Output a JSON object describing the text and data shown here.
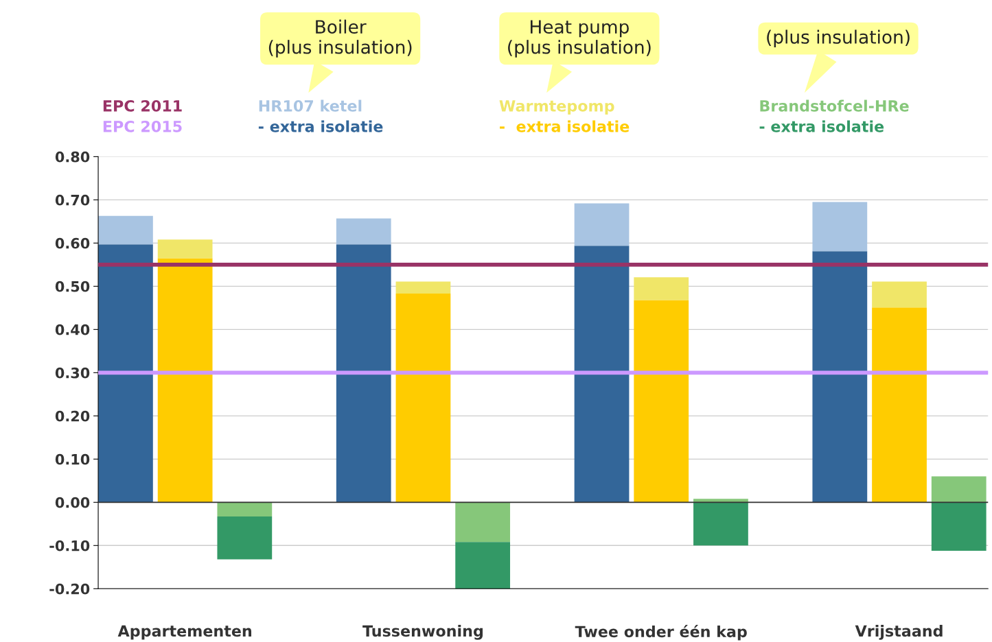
{
  "chart_data": {
    "type": "bar",
    "stacked": true,
    "categories": [
      null,
      "Appartementen",
      null,
      null,
      null,
      "Tussenwoning",
      null,
      null,
      null,
      "Twee onder één kap",
      null,
      null,
      null,
      "Vrijstaand",
      null
    ],
    "series": [
      {
        "name": "- extra isolatie",
        "color": "#336699",
        "values": [
          0.597,
          null,
          null,
          null,
          0.597,
          null,
          null,
          null,
          0.594,
          null,
          null,
          null,
          0.581,
          null,
          null
        ]
      },
      {
        "name": "HR107 ketel",
        "color": "#a8c4e2",
        "values": [
          0.066,
          null,
          null,
          null,
          0.06,
          null,
          null,
          null,
          0.098,
          null,
          null,
          null,
          0.114,
          null,
          null
        ]
      },
      {
        "name": "-  extra isolatie",
        "color": "#ffcc00",
        "values": [
          null,
          0.565,
          null,
          null,
          null,
          0.483,
          null,
          null,
          null,
          0.468,
          null,
          null,
          null,
          0.451,
          null
        ]
      },
      {
        "name": "Warmtepomp",
        "color": "#f0e668",
        "values": [
          null,
          0.043,
          null,
          null,
          null,
          0.028,
          null,
          null,
          null,
          0.053,
          null,
          null,
          null,
          0.06,
          null
        ]
      },
      {
        "name": "Brandstofcel-HRe",
        "color": "#86c77a",
        "values": [
          null,
          null,
          -0.033,
          null,
          null,
          null,
          -0.092,
          null,
          null,
          null,
          0.008,
          null,
          null,
          null,
          0.06
        ]
      },
      {
        "name": "- extra isolatie",
        "color": "#339966",
        "values": [
          null,
          null,
          -0.099,
          null,
          null,
          null,
          -0.114,
          null,
          null,
          null,
          -0.1,
          null,
          null,
          null,
          -0.112
        ]
      }
    ],
    "ylim": [
      -0.2,
      0.8
    ],
    "yticks": [
      {
        "value": -0.2,
        "label": "-0.20"
      },
      {
        "value": -0.1,
        "label": "-0.10"
      },
      {
        "value": 0,
        "label": "0.00"
      },
      {
        "value": 0.1,
        "label": "0.10"
      },
      {
        "value": 0.2,
        "label": "0.20"
      },
      {
        "value": 0.3,
        "label": "0.30"
      },
      {
        "value": 0.4,
        "label": "0.40"
      },
      {
        "value": 0.5,
        "label": "0.50"
      },
      {
        "value": 0.6,
        "label": "0.60"
      },
      {
        "value": 0.7,
        "label": "0.70"
      },
      {
        "value": 0.8,
        "label": "0.80"
      }
    ],
    "ref_lines": [
      {
        "axis": "y",
        "value": 0.55,
        "label": "EPC 2011",
        "color": "#993366"
      },
      {
        "axis": "y",
        "value": 0.3,
        "label": "EPC 2015",
        "color": "#cc99ff"
      }
    ],
    "grid": "y",
    "legend": "top",
    "annotations": [
      "Boiler\n(plus insulation)",
      "Heat pump\n(plus insulation)",
      "(plus insulation)"
    ]
  }
}
